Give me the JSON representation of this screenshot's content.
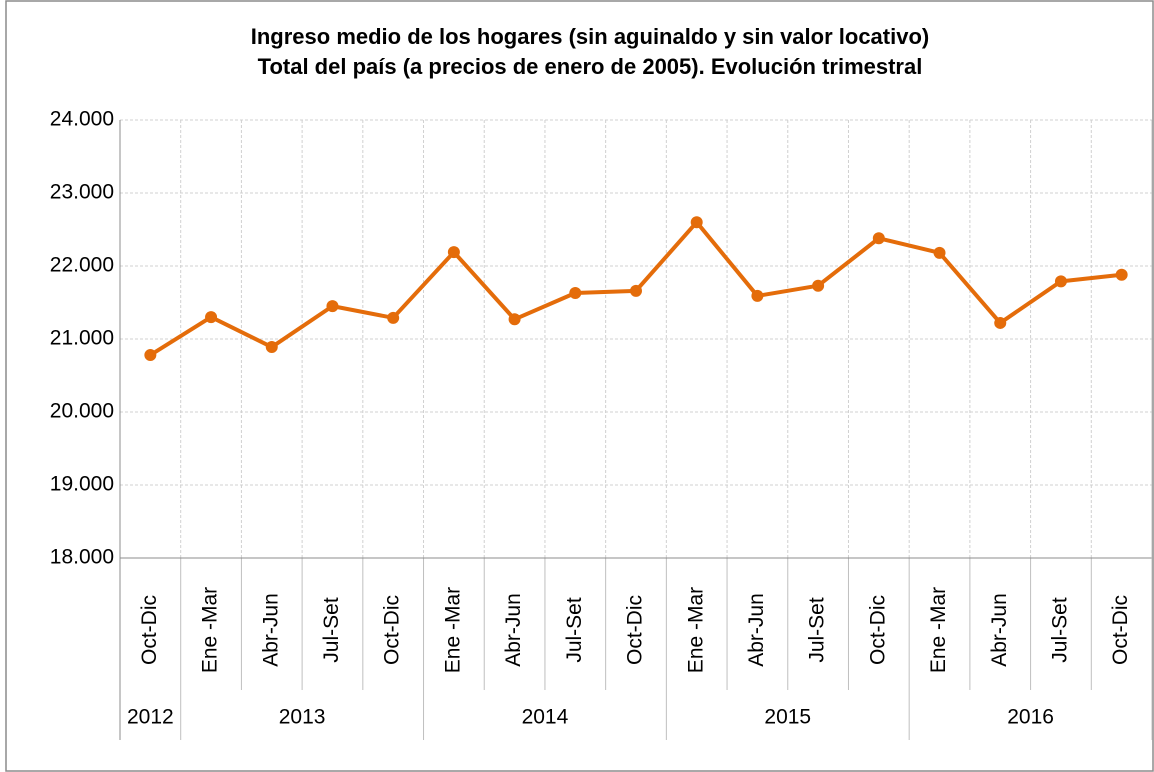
{
  "chart_data": {
    "type": "line",
    "title": [
      "Ingreso medio de los hogares (sin aguinaldo y sin valor locativo)",
      "Total del país (a precios de enero de 2005). Evolución trimestral"
    ],
    "categories": [
      "Oct-Dic",
      "Ene -Mar",
      "Abr-Jun",
      "Jul-Set",
      "Oct-Dic",
      "Ene -Mar",
      "Abr-Jun",
      "Jul-Set",
      "Oct-Dic",
      "Ene -Mar",
      "Abr-Jun",
      "Jul-Set",
      "Oct-Dic",
      "Ene -Mar",
      "Abr-Jun",
      "Jul-Set",
      "Oct-Dic"
    ],
    "year_labels": [
      "2012",
      "2013",
      "2014",
      "2015",
      "2016"
    ],
    "year_spans": [
      1,
      4,
      4,
      4,
      4
    ],
    "values": [
      20780,
      21300,
      20890,
      21450,
      21290,
      22190,
      21270,
      21630,
      21660,
      22600,
      21590,
      21730,
      22380,
      22180,
      21220,
      21790,
      21880
    ],
    "color": "#e46c0a",
    "ylim": [
      18000,
      24000
    ],
    "yticks": [
      {
        "value": 18000,
        "label": "18.000"
      },
      {
        "value": 19000,
        "label": "19.000"
      },
      {
        "value": 20000,
        "label": "20.000"
      },
      {
        "value": 21000,
        "label": "21.000"
      },
      {
        "value": 22000,
        "label": "22.000"
      },
      {
        "value": 23000,
        "label": "23.000"
      },
      {
        "value": 24000,
        "label": "24.000"
      }
    ],
    "grid": true
  }
}
